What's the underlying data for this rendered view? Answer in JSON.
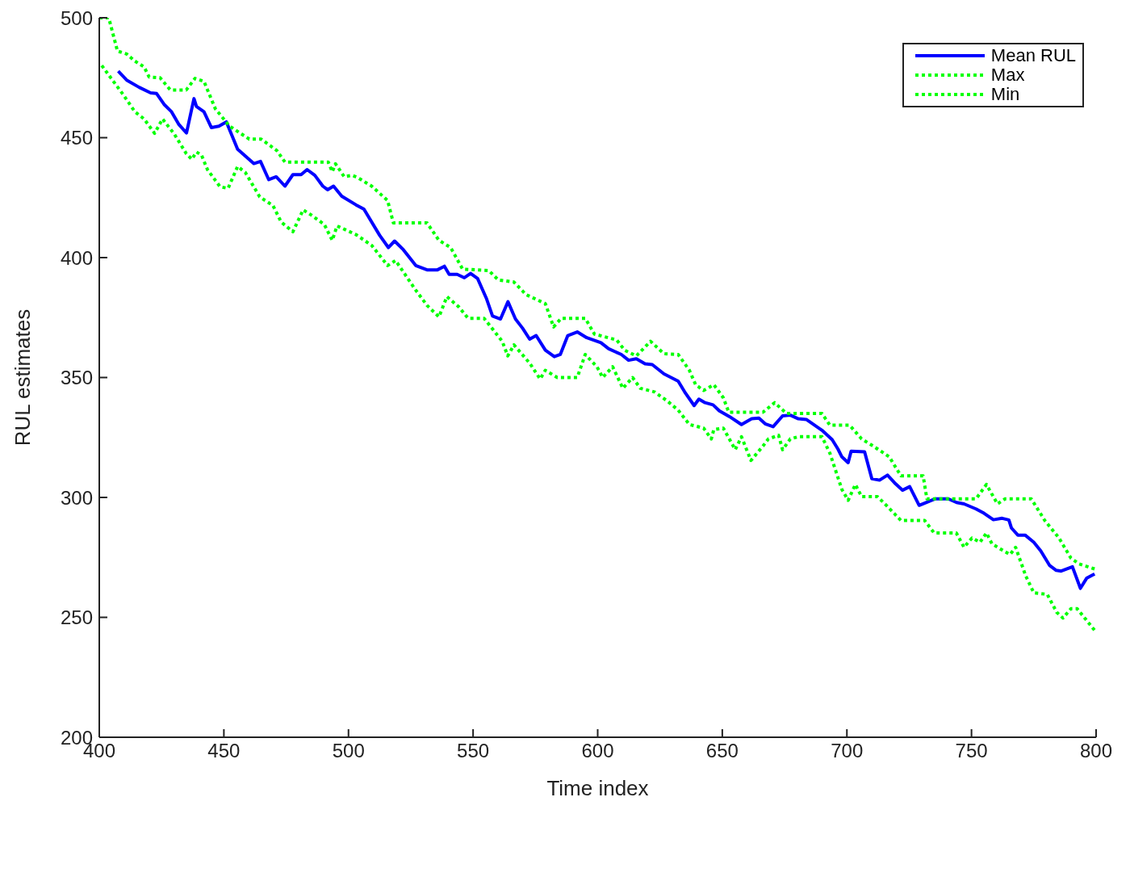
{
  "chart_data": {
    "type": "line",
    "xlabel": "Time index",
    "ylabel": "RUL estimates",
    "xlim": [
      400,
      800
    ],
    "xticks": [
      400,
      450,
      500,
      550,
      600,
      650,
      700,
      750,
      800
    ],
    "ylim": [
      200,
      500
    ],
    "yticks": [
      200,
      250,
      300,
      350,
      400,
      450,
      500
    ],
    "grid": false,
    "legend": "top right",
    "marker": "none",
    "series": [
      {
        "name": "Mean RUL",
        "color": "#0000ff",
        "line_style": "solid",
        "x": [
          407.6,
          411,
          416,
          420.6,
          423,
          426,
          429,
          432,
          435,
          438,
          439,
          442,
          445,
          448,
          451,
          455.5,
          462,
          464.7,
          468,
          471,
          474.5,
          477.7,
          481,
          483.4,
          486.5,
          489.7,
          491.6,
          494,
          497.3,
          503,
          506.2,
          512.5,
          516,
          518.5,
          522,
          527,
          531.5,
          535.7,
          538.5,
          540.4,
          543.6,
          546.5,
          549,
          551.8,
          555.3,
          557.8,
          561,
          564,
          567,
          569.9,
          572.7,
          575.3,
          579,
          582.6,
          585,
          588,
          591.8,
          595.6,
          601.3,
          604.4,
          609.5,
          612.4,
          615.5,
          619,
          621.9,
          626.6,
          632.3,
          634.9,
          638.7,
          640.6,
          643.1,
          646.3,
          648.8,
          652.9,
          657.7,
          661.8,
          664.7,
          667.2,
          670.4,
          674.2,
          677.3,
          680.5,
          683.7,
          690,
          694.1,
          696.4,
          698,
          700.5,
          701.7,
          707.1,
          710,
          713.1,
          716.3,
          719.5,
          722.3,
          725.2,
          729,
          735.3,
          740.7,
          744,
          747,
          751.8,
          755,
          758.8,
          762.3,
          765,
          766,
          768.6,
          771.5,
          775,
          777.8,
          781.3,
          784,
          786,
          790.5,
          793.7,
          796.2,
          799.4
        ],
        "values": [
          477.7,
          474,
          471,
          468.7,
          468.4,
          463.9,
          460.8,
          455.4,
          452,
          466.3,
          463,
          460.8,
          454.2,
          454.8,
          456.6,
          445.2,
          439.2,
          440.1,
          432.5,
          433.7,
          429.8,
          434.6,
          434.6,
          436.7,
          434.3,
          429.8,
          428.3,
          429.8,
          425.6,
          422,
          420.2,
          409.3,
          404.2,
          406.9,
          403.3,
          396.7,
          394.9,
          394.9,
          396.4,
          393,
          393,
          391.6,
          393.4,
          391.3,
          383.1,
          375.6,
          374.4,
          381.6,
          374.4,
          370.5,
          366,
          367.5,
          361.4,
          358.7,
          359.6,
          367.5,
          369,
          366.6,
          364.5,
          362,
          359.6,
          357.2,
          357.8,
          355.7,
          355.4,
          351.5,
          348.5,
          344,
          338.3,
          341,
          339.5,
          338.6,
          336.1,
          333.7,
          330.4,
          332.8,
          333.1,
          330.7,
          329.5,
          334,
          334.3,
          332.8,
          332.5,
          328,
          324.1,
          320.2,
          316.9,
          314.5,
          319.3,
          319,
          307.8,
          307.2,
          309.3,
          305.7,
          303,
          304.5,
          296.7,
          299.4,
          299.4,
          297.9,
          297.3,
          295.2,
          293.4,
          290.7,
          291.3,
          290.6,
          287.3,
          284.3,
          284.3,
          281.3,
          277.7,
          271.7,
          269.6,
          269.3,
          271.1,
          262.1,
          266.3,
          268.1
        ]
      },
      {
        "name": "Max",
        "color": "#00ff00",
        "line_style": "dotted",
        "x": [
          400,
          403.8,
          407.3,
          411,
          414.3,
          418,
          420,
          424.4,
          428.5,
          434.9,
          438.4,
          442,
          446.6,
          452.3,
          460.2,
          465,
          471.3,
          474.5,
          483,
          491.9,
          493.5,
          494.8,
          498.3,
          501.4,
          503.6,
          509.3,
          515.7,
          518,
          531.5,
          536.3,
          541,
          545.8,
          556.3,
          560.1,
          566.4,
          571.2,
          579,
          582.3,
          585.4,
          595,
          598.7,
          607.6,
          610.8,
          615.5,
          621.2,
          626.6,
          632.3,
          636.8,
          639.3,
          642.5,
          646.6,
          650.4,
          652.6,
          666.3,
          671,
          675.8,
          690,
          693.2,
          701.1,
          705.9,
          710.6,
          717,
          721.7,
          730.6,
          732.1,
          751.8,
          756,
          760.4,
          763.5,
          774,
          779.4,
          785.1,
          789.9,
          793.1,
          799.4
        ],
        "values": [
          500,
          500,
          486.1,
          484.9,
          481.9,
          479.5,
          475.3,
          475,
          469.9,
          469.9,
          474.7,
          473.5,
          462,
          454.8,
          449.4,
          449.4,
          444.6,
          439.8,
          439.8,
          439.8,
          435.8,
          439.1,
          433.7,
          434.3,
          433.4,
          429.8,
          423.8,
          414.5,
          414.5,
          407.2,
          404.2,
          395.2,
          394.6,
          390.7,
          389.8,
          384.6,
          380.8,
          371.1,
          374.7,
          374.7,
          368.1,
          365.7,
          361.4,
          359,
          365.1,
          359.9,
          359.6,
          353,
          347,
          344.6,
          347,
          341.6,
          335.5,
          335.5,
          339.5,
          335,
          335,
          330.1,
          330.1,
          324.4,
          321.4,
          316.9,
          309,
          309,
          299.4,
          299.4,
          305.4,
          297.3,
          299.4,
          299.4,
          290.4,
          283.1,
          274.7,
          272.3,
          270.2
        ]
      },
      {
        "name": "Min",
        "color": "#00ff00",
        "line_style": "dotted",
        "x": [
          401,
          404.8,
          409.5,
          414.3,
          418,
          422.2,
          425.4,
          430.1,
          434.9,
          437.1,
          439,
          441,
          443.4,
          448.5,
          451.7,
          455.5,
          458.6,
          464.4,
          469.7,
          473,
          477.7,
          481.8,
          485,
          490.3,
          493.5,
          495.4,
          503,
          509.3,
          515.7,
          518.9,
          526.8,
          531.5,
          536.3,
          539.5,
          544.2,
          548,
          554.4,
          561.7,
          563.9,
          566.4,
          572.7,
          576.9,
          579,
          583.8,
          591.8,
          595,
          599.7,
          602,
          606,
          610.1,
          614,
          617.1,
          622.8,
          628.2,
          632.3,
          636.8,
          642.5,
          645.6,
          646.6,
          650.4,
          655.2,
          657.7,
          661.5,
          666.3,
          668.5,
          672.6,
          674.2,
          677.3,
          680.5,
          690,
          693.2,
          698,
          700.5,
          703.4,
          705.9,
          712.3,
          716.1,
          721.7,
          731.2,
          735,
          743.9,
          747,
          750.2,
          753.4,
          756,
          758.2,
          762.9,
          765.5,
          767.7,
          771.8,
          775,
          780.4,
          784.2,
          786.7,
          789.9,
          792.4,
          799.4
        ],
        "values": [
          480.1,
          474.7,
          468.1,
          460.8,
          457.8,
          451.8,
          457.8,
          451.5,
          443.4,
          441,
          444,
          442.8,
          436.7,
          429.5,
          428.9,
          438,
          435.5,
          425.3,
          421.7,
          414.8,
          410.8,
          419.9,
          417.8,
          413.8,
          407.2,
          413.2,
          409.6,
          405.1,
          396.7,
          398.8,
          386.7,
          380.1,
          375.3,
          383.7,
          379.5,
          374.7,
          374.7,
          365.1,
          359,
          363.6,
          356,
          349.4,
          353,
          350,
          350,
          359.6,
          354.5,
          350,
          354.5,
          345.5,
          350,
          345.5,
          344,
          340,
          336.4,
          330.4,
          328.9,
          324.4,
          328.3,
          328.9,
          319.9,
          325.3,
          315.4,
          321.4,
          324.4,
          325.9,
          319.9,
          324.4,
          325.3,
          325.3,
          318.4,
          303.3,
          298.8,
          305.4,
          300.3,
          300.3,
          296.4,
          290.4,
          290.4,
          285.2,
          285.2,
          279.2,
          283.1,
          281.3,
          285.2,
          280.7,
          277.7,
          276.2,
          279.2,
          267.2,
          260.2,
          259.6,
          252.1,
          249.7,
          253.6,
          253.6,
          244.6
        ]
      }
    ]
  }
}
